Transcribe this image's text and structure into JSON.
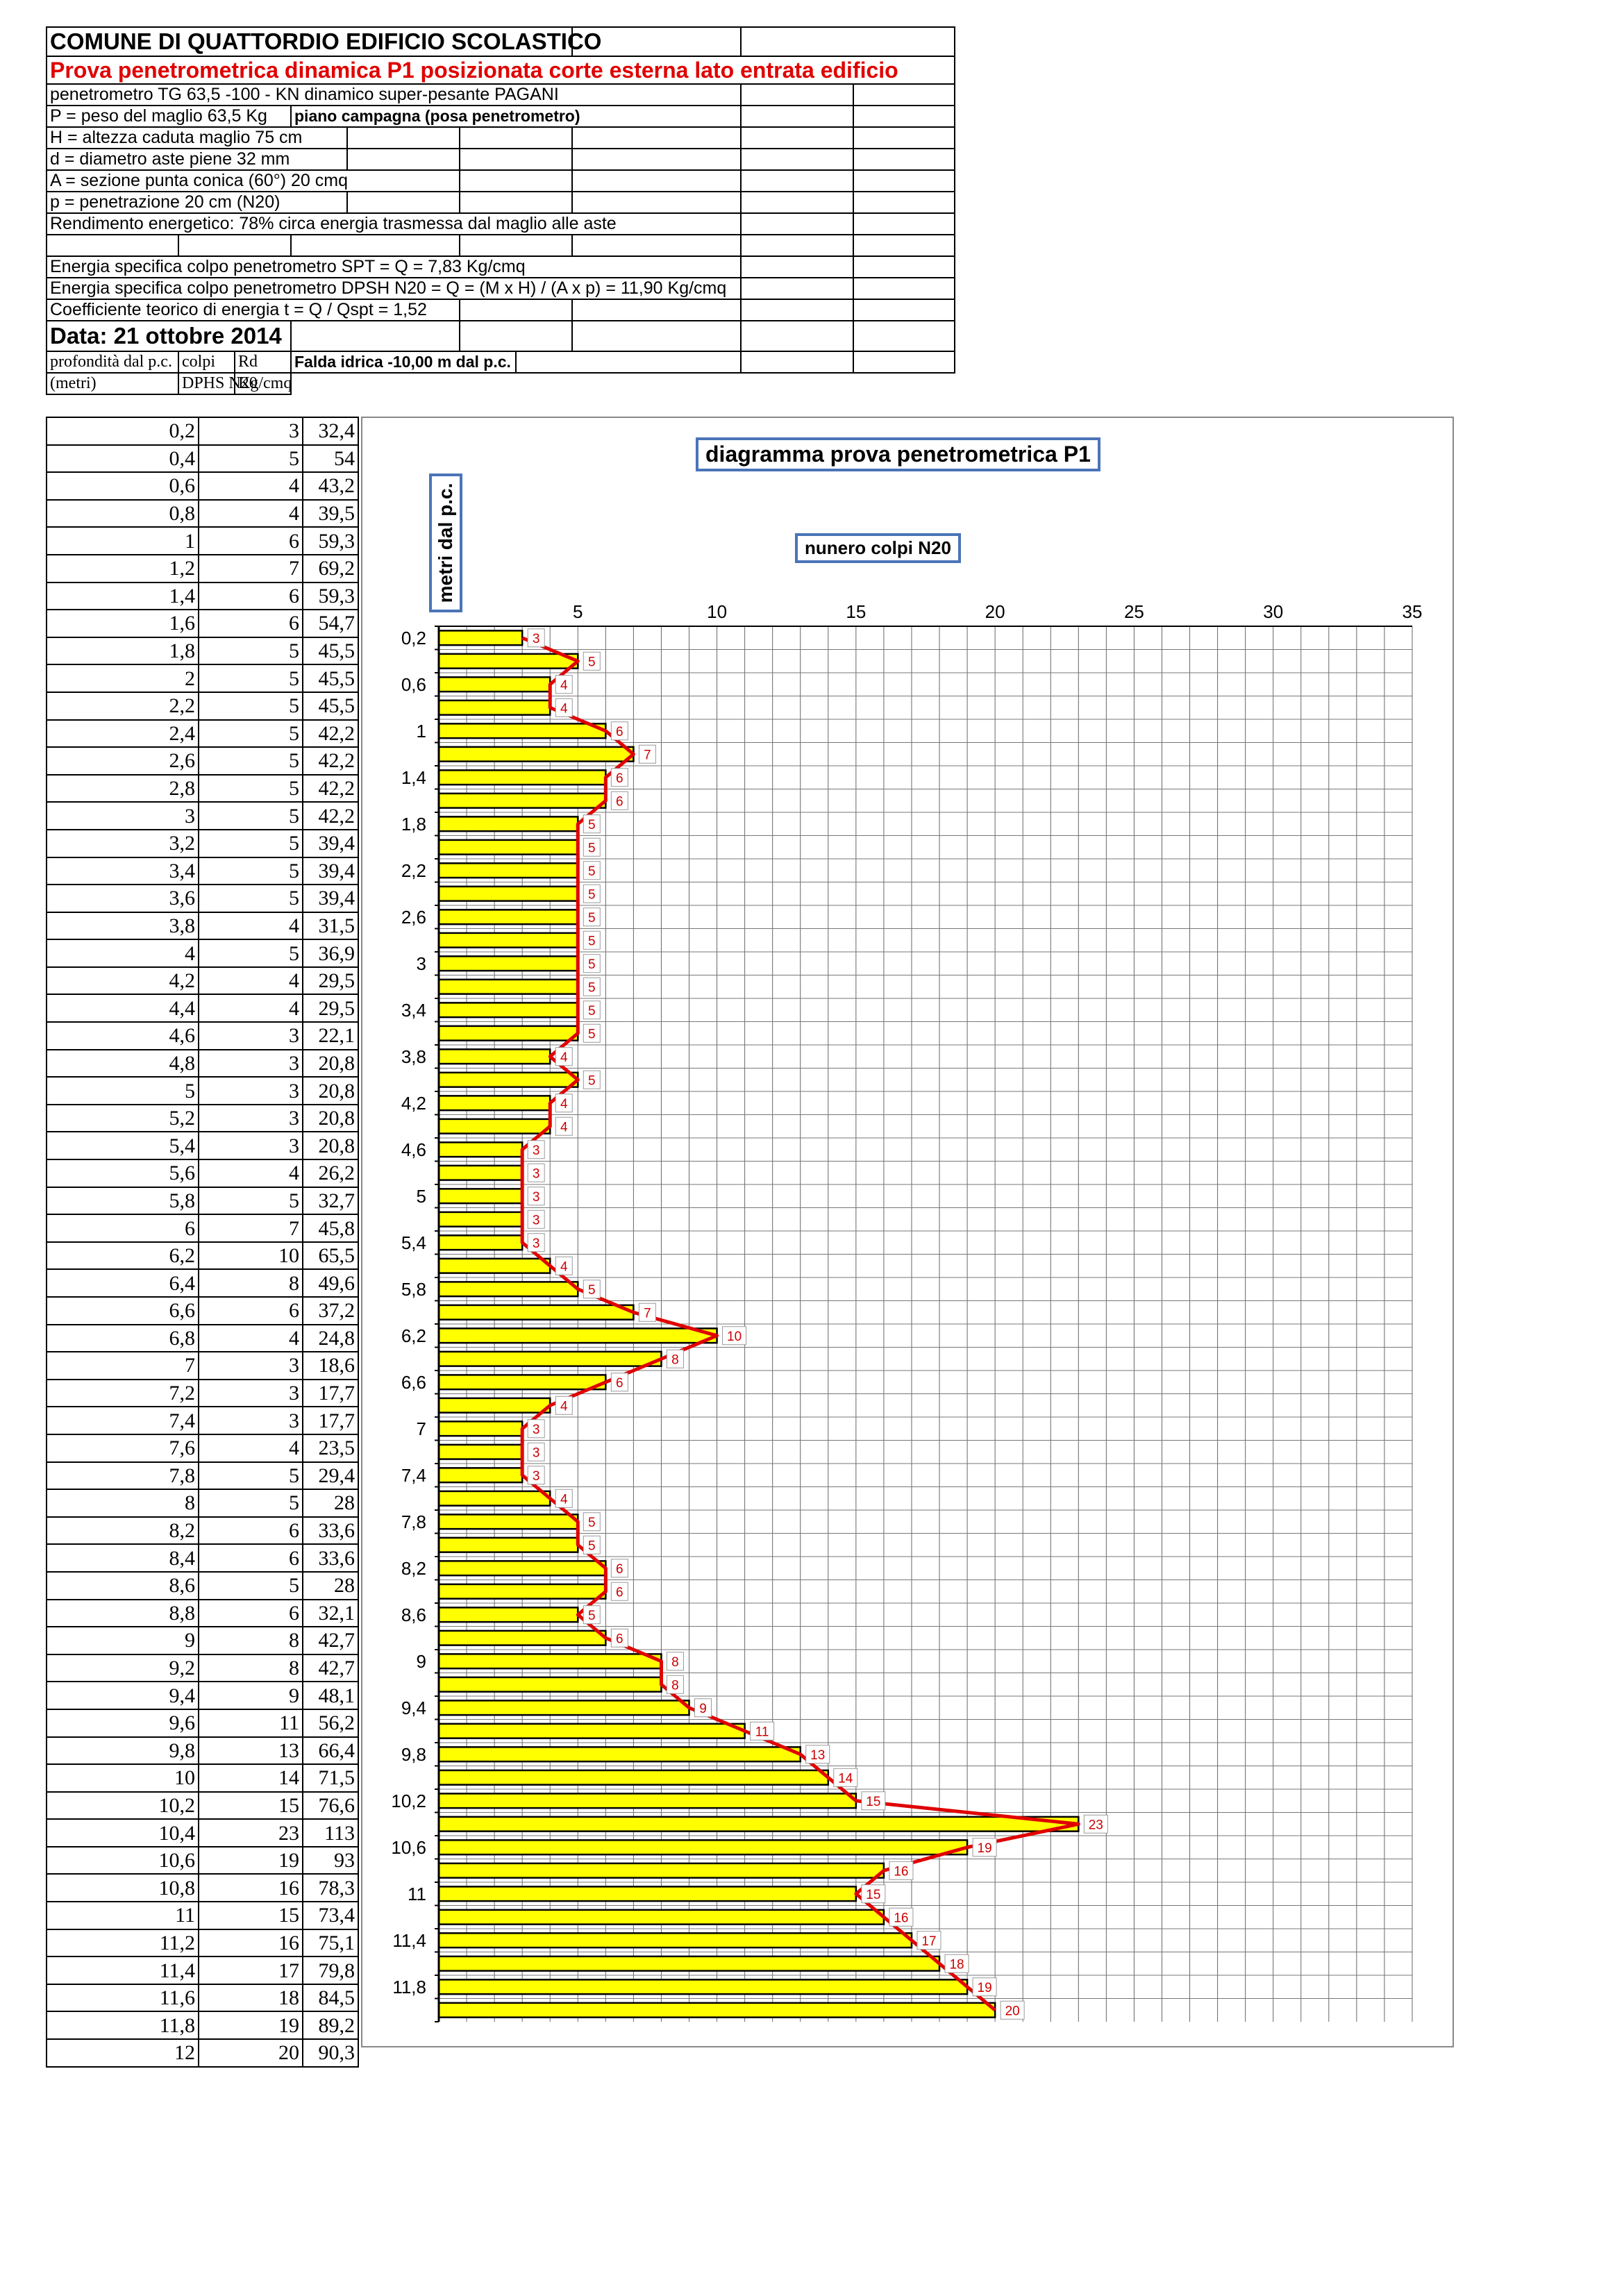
{
  "header": {
    "title": "COMUNE DI QUATTORDIO EDIFICIO SCOLASTICO",
    "subtitle": "Prova penetrometrica dinamica  P1 posizionata corte esterna lato entrata edificio",
    "lines": [
      "penetrometro TG 63,5 -100 - KN dinamico super-pesante PAGANI",
      "P = peso del maglio 63,5 Kg",
      "H = altezza caduta maglio 75 cm",
      "d = diametro aste piene 32 mm",
      "A = sezione punta conica (60°) 20 cmq",
      "p = penetrazione 20 cm (N20)",
      "Rendimento energetico: 78% circa energia trasmessa dal maglio alle aste",
      "Energia specifica colpo penetrometro SPT = Q = 7,83 Kg/cmq",
      "Energia specifica colpo penetrometro DPSH N20 = Q = (M x H) / (A x p) = 11,90 Kg/cmq",
      "Coefficiente teorico di energia t = Q / Qspt = 1,52"
    ],
    "piano_campagna": "piano campagna (posa penetrometro)",
    "date": "Data: 21 ottobre 2014",
    "falda": "Falda idrica -10,00 m dal p.c.",
    "col_headers": [
      "profondità dal p.c.",
      "colpi",
      "Rd"
    ],
    "col_subheaders": [
      "(metri)",
      "DPHS N20",
      "Kg/cmq"
    ]
  },
  "table": {
    "depth": [
      "0,2",
      "0,4",
      "0,6",
      "0,8",
      "1",
      "1,2",
      "1,4",
      "1,6",
      "1,8",
      "2",
      "2,2",
      "2,4",
      "2,6",
      "2,8",
      "3",
      "3,2",
      "3,4",
      "3,6",
      "3,8",
      "4",
      "4,2",
      "4,4",
      "4,6",
      "4,8",
      "5",
      "5,2",
      "5,4",
      "5,6",
      "5,8",
      "6",
      "6,2",
      "6,4",
      "6,6",
      "6,8",
      "7",
      "7,2",
      "7,4",
      "7,6",
      "7,8",
      "8",
      "8,2",
      "8,4",
      "8,6",
      "8,8",
      "9",
      "9,2",
      "9,4",
      "9,6",
      "9,8",
      "10",
      "10,2",
      "10,4",
      "10,6",
      "10,8",
      "11",
      "11,2",
      "11,4",
      "11,6",
      "11,8",
      "12"
    ],
    "colpi": [
      3,
      5,
      4,
      4,
      6,
      7,
      6,
      6,
      5,
      5,
      5,
      5,
      5,
      5,
      5,
      5,
      5,
      5,
      4,
      5,
      4,
      4,
      3,
      3,
      3,
      3,
      3,
      4,
      5,
      7,
      10,
      8,
      6,
      4,
      3,
      3,
      3,
      4,
      5,
      5,
      6,
      6,
      5,
      6,
      8,
      8,
      9,
      11,
      13,
      14,
      15,
      23,
      19,
      16,
      15,
      16,
      17,
      18,
      19,
      20
    ],
    "rd": [
      "32,4",
      "54",
      "43,2",
      "39,5",
      "59,3",
      "69,2",
      "59,3",
      "54,7",
      "45,5",
      "45,5",
      "45,5",
      "42,2",
      "42,2",
      "42,2",
      "42,2",
      "39,4",
      "39,4",
      "39,4",
      "31,5",
      "36,9",
      "29,5",
      "29,5",
      "22,1",
      "20,8",
      "20,8",
      "20,8",
      "20,8",
      "26,2",
      "32,7",
      "45,8",
      "65,5",
      "49,6",
      "37,2",
      "24,8",
      "18,6",
      "17,7",
      "17,7",
      "23,5",
      "29,4",
      "28",
      "33,6",
      "33,6",
      "28",
      "32,1",
      "42,7",
      "42,7",
      "48,1",
      "56,2",
      "66,4",
      "71,5",
      "76,6",
      "113",
      "93",
      "78,3",
      "73,4",
      "75,1",
      "79,8",
      "84,5",
      "89,2",
      "90,3"
    ]
  },
  "chart_data": {
    "type": "bar",
    "orientation": "horizontal",
    "title": "diagramma prova penetrometrica P1",
    "xlabel": "nunero colpi N20",
    "ylabel": "metri dal p.c.",
    "xlim": [
      0,
      35
    ],
    "xticks": [
      "5",
      "10",
      "15",
      "20",
      "25",
      "30",
      "35"
    ],
    "yticks": [
      "0,2",
      "0,6",
      "1",
      "1,4",
      "1,8",
      "2,2",
      "2,6",
      "3",
      "3,4",
      "3,8",
      "4,2",
      "4,6",
      "5",
      "5,4",
      "5,8",
      "6,2",
      "6,6",
      "7",
      "7,4",
      "7,8",
      "8,2",
      "8,6",
      "9",
      "9,4",
      "9,8",
      "10,2",
      "10,6",
      "11",
      "11,4",
      "11,8"
    ],
    "depths": [
      0.2,
      0.4,
      0.6,
      0.8,
      1,
      1.2,
      1.4,
      1.6,
      1.8,
      2,
      2.2,
      2.4,
      2.6,
      2.8,
      3,
      3.2,
      3.4,
      3.6,
      3.8,
      4,
      4.2,
      4.4,
      4.6,
      4.8,
      5,
      5.2,
      5.4,
      5.6,
      5.8,
      6,
      6.2,
      6.4,
      6.6,
      6.8,
      7,
      7.2,
      7.4,
      7.6,
      7.8,
      8,
      8.2,
      8.4,
      8.6,
      8.8,
      9,
      9.2,
      9.4,
      9.6,
      9.8,
      10,
      10.2,
      10.4,
      10.6,
      10.8,
      11,
      11.2,
      11.4,
      11.6,
      11.8,
      12
    ],
    "values": [
      3,
      5,
      4,
      4,
      6,
      7,
      6,
      6,
      5,
      5,
      5,
      5,
      5,
      5,
      5,
      5,
      5,
      5,
      4,
      5,
      4,
      4,
      3,
      3,
      3,
      3,
      3,
      4,
      5,
      7,
      10,
      8,
      6,
      4,
      3,
      3,
      3,
      4,
      5,
      5,
      6,
      6,
      5,
      6,
      8,
      8,
      9,
      11,
      13,
      14,
      15,
      23,
      19,
      16,
      15,
      16,
      17,
      18,
      19,
      20
    ],
    "bar_color": "#ffff00",
    "line_color": "#e00000",
    "label_color": "#cc0000",
    "grid": true
  }
}
